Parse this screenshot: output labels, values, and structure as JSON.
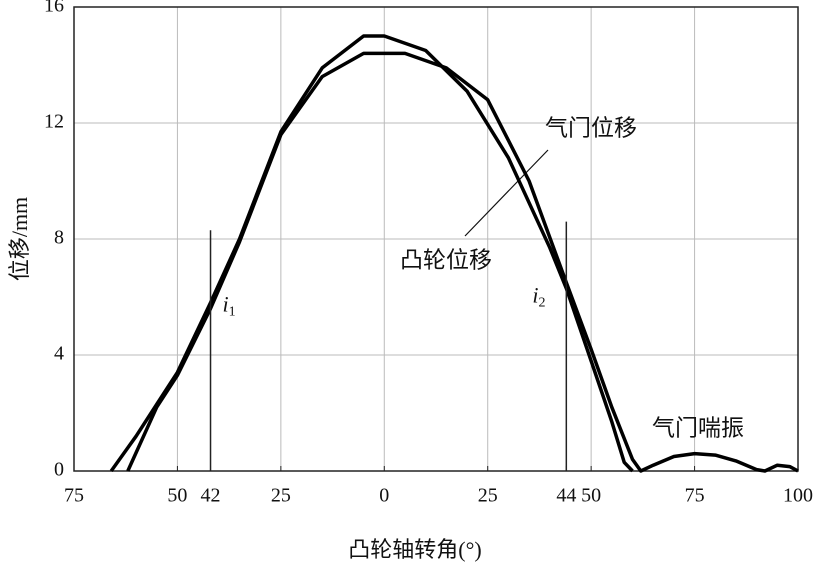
{
  "chart_data": {
    "type": "line",
    "xlabel": "凸轮轴转角(°)",
    "ylabel": "位移/mm",
    "xlim": [
      -75,
      100
    ],
    "ylim": [
      0,
      16
    ],
    "xticks": [
      {
        "value": -75,
        "label": "75"
      },
      {
        "value": -50,
        "label": "50"
      },
      {
        "value": -42,
        "label": "42"
      },
      {
        "value": -25,
        "label": "25"
      },
      0,
      25,
      44,
      50,
      75,
      100
    ],
    "gridx": [
      -50,
      -25,
      0,
      25,
      50,
      75
    ],
    "yticks": [
      0,
      4,
      8,
      12,
      16
    ],
    "grid": true,
    "series": [
      {
        "name": "凸轮位移",
        "color": "#000000",
        "x": [
          -66,
          -60,
          -55,
          -50,
          -42,
          -35,
          -25,
          -15,
          -5,
          0,
          10,
          20,
          30,
          40,
          44,
          50,
          55,
          58,
          60
        ],
        "values": [
          0,
          1.2,
          2.3,
          3.4,
          5.8,
          8,
          11.7,
          13.9,
          15,
          15,
          14.5,
          13.1,
          10.8,
          7.7,
          6.3,
          3.8,
          1.7,
          0.3,
          0
        ]
      },
      {
        "name": "气门位移",
        "color": "#000000",
        "x": [
          -62,
          -55,
          -50,
          -42,
          -35,
          -25,
          -15,
          -5,
          5,
          15,
          25,
          35,
          44,
          50,
          55,
          60,
          62,
          65,
          70,
          75,
          80,
          85,
          90,
          92,
          95,
          98,
          100
        ],
        "values": [
          0,
          2.2,
          3.3,
          5.6,
          7.9,
          11.6,
          13.6,
          14.4,
          14.4,
          13.9,
          12.8,
          10,
          6.5,
          4.2,
          2.2,
          0.4,
          0,
          0.2,
          0.5,
          0.6,
          0.55,
          0.35,
          0.05,
          0,
          0.2,
          0.15,
          0
        ]
      }
    ],
    "markers": [
      {
        "x": -42,
        "height": 8.3,
        "label": "i",
        "subscript": "1"
      },
      {
        "x": 44,
        "height": 8.6,
        "label": "i",
        "subscript": "2"
      }
    ],
    "annotation": "气门喘振"
  }
}
